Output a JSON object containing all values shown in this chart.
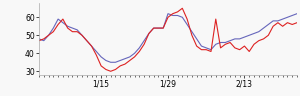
{
  "xlim": [
    0,
    54
  ],
  "ylim": [
    28,
    68
  ],
  "yticks": [
    30,
    40,
    50,
    60
  ],
  "xtick_labels": [
    "1/15",
    "1/29",
    "2/13"
  ],
  "xtick_positions": [
    13,
    27,
    43
  ],
  "blue_y": [
    48,
    47,
    50,
    54,
    59,
    57,
    55,
    54,
    53,
    50,
    47,
    44,
    41,
    38,
    36,
    35,
    35,
    36,
    37,
    38,
    40,
    43,
    47,
    51,
    54,
    54,
    54,
    62,
    61,
    61,
    60,
    56,
    52,
    48,
    44,
    43,
    42,
    45,
    46,
    46,
    47,
    48,
    48,
    49,
    50,
    51,
    52,
    54,
    56,
    58,
    58,
    59,
    60,
    61,
    62
  ],
  "red_y": [
    47,
    48,
    50,
    52,
    56,
    59,
    54,
    52,
    52,
    50,
    47,
    44,
    39,
    33,
    31,
    30,
    31,
    33,
    34,
    36,
    38,
    41,
    45,
    51,
    54,
    54,
    54,
    60,
    62,
    63,
    65,
    59,
    50,
    44,
    42,
    42,
    41,
    59,
    43,
    45,
    46,
    43,
    42,
    44,
    41,
    45,
    47,
    48,
    50,
    55,
    57,
    55,
    57,
    56,
    57
  ],
  "blue_color": "#6666bb",
  "red_color": "#dd2222",
  "bg_color": "#f8f8f8",
  "linewidth": 0.8
}
